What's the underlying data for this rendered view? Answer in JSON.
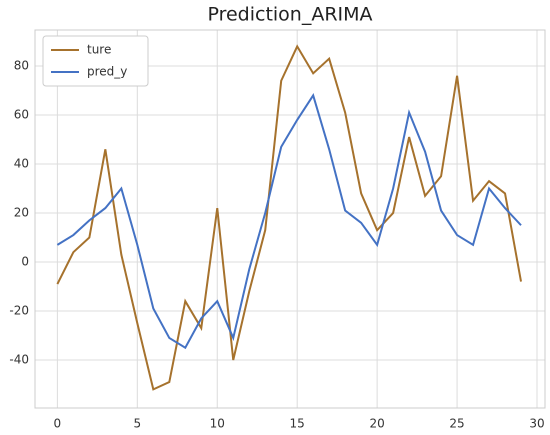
{
  "chart_data": {
    "type": "line",
    "title": "Prediction_ARIMA",
    "x": [
      0,
      1,
      2,
      3,
      4,
      5,
      6,
      7,
      8,
      9,
      10,
      11,
      12,
      13,
      14,
      15,
      16,
      17,
      18,
      19,
      20,
      21,
      22,
      23,
      24,
      25,
      26,
      27,
      28,
      29
    ],
    "series": [
      {
        "name": "ture",
        "color": "#a6722d",
        "values": [
          -9,
          4,
          10,
          46,
          3,
          -25,
          -52,
          -49,
          -16,
          -27,
          22,
          -40,
          -12,
          13,
          74,
          88,
          77,
          83,
          61,
          28,
          13,
          20,
          51,
          27,
          35,
          76,
          25,
          33,
          28,
          -8
        ]
      },
      {
        "name": "pred_y",
        "color": "#4472c4",
        "values": [
          7,
          11,
          17,
          22,
          30,
          7,
          -19,
          -31,
          -35,
          -23,
          -16,
          -31,
          -3,
          20,
          47,
          58,
          68,
          46,
          21,
          16,
          7,
          30,
          61,
          45,
          21,
          11,
          7,
          30,
          22,
          15
        ]
      }
    ],
    "xlim": [
      -1.4,
      30.5
    ],
    "ylim": [
      -59.6,
      94.7
    ],
    "xticks": [
      0,
      5,
      10,
      15,
      20,
      25,
      30
    ],
    "yticks": [
      -40,
      -20,
      0,
      20,
      40,
      60,
      80
    ],
    "grid": true,
    "legend": "upper-left"
  }
}
